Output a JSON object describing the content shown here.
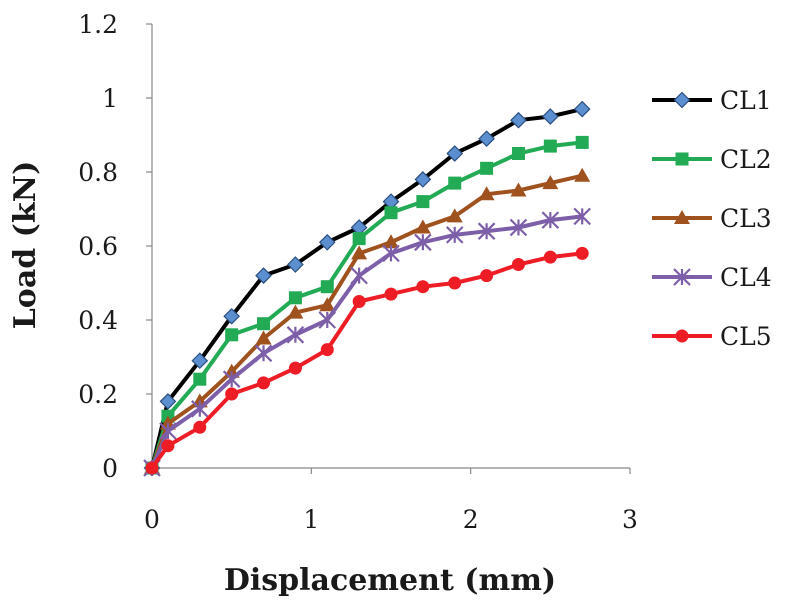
{
  "chart_data": {
    "type": "line",
    "title": "",
    "xlabel": "Displacement (mm)",
    "ylabel": "Load (kN)",
    "xlim": [
      0,
      3
    ],
    "ylim": [
      0,
      1.2
    ],
    "xticks": [
      "0",
      "1",
      "2",
      "3"
    ],
    "yticks": [
      "0",
      "0.2",
      "0.4",
      "0.6",
      "0.8",
      "1",
      "1.2"
    ],
    "grid": false,
    "legend": "right",
    "x": [
      0,
      0.1,
      0.3,
      0.5,
      0.7,
      0.9,
      1.1,
      1.3,
      1.5,
      1.7,
      1.9,
      2.1,
      2.3,
      2.5,
      2.7
    ],
    "series": [
      {
        "name": "CL1",
        "color": "#000000",
        "marker": "diamond",
        "marker_fill": "#5b8fcf",
        "values": [
          0,
          0.18,
          0.29,
          0.41,
          0.52,
          0.55,
          0.61,
          0.65,
          0.72,
          0.78,
          0.85,
          0.89,
          0.94,
          0.95,
          0.97
        ]
      },
      {
        "name": "CL2",
        "color": "#22aa55",
        "marker": "square",
        "marker_fill": "#22aa55",
        "values": [
          0,
          0.14,
          0.24,
          0.36,
          0.39,
          0.46,
          0.49,
          0.62,
          0.69,
          0.72,
          0.77,
          0.81,
          0.85,
          0.87,
          0.88
        ]
      },
      {
        "name": "CL3",
        "color": "#a0521e",
        "marker": "triangle",
        "marker_fill": "#a0521e",
        "values": [
          0,
          0.12,
          0.18,
          0.26,
          0.35,
          0.42,
          0.44,
          0.58,
          0.61,
          0.65,
          0.68,
          0.74,
          0.75,
          0.77,
          0.79
        ]
      },
      {
        "name": "CL4",
        "color": "#7c5fa8",
        "marker": "asterisk",
        "marker_fill": "#7c5fa8",
        "values": [
          0,
          0.1,
          0.16,
          0.24,
          0.31,
          0.36,
          0.4,
          0.52,
          0.58,
          0.61,
          0.63,
          0.64,
          0.65,
          0.67,
          0.68
        ]
      },
      {
        "name": "CL5",
        "color": "#ee1c25",
        "marker": "circle",
        "marker_fill": "#ee1c25",
        "values": [
          0,
          0.06,
          0.11,
          0.2,
          0.23,
          0.27,
          0.32,
          0.45,
          0.47,
          0.49,
          0.5,
          0.52,
          0.55,
          0.57,
          0.58
        ]
      }
    ]
  }
}
